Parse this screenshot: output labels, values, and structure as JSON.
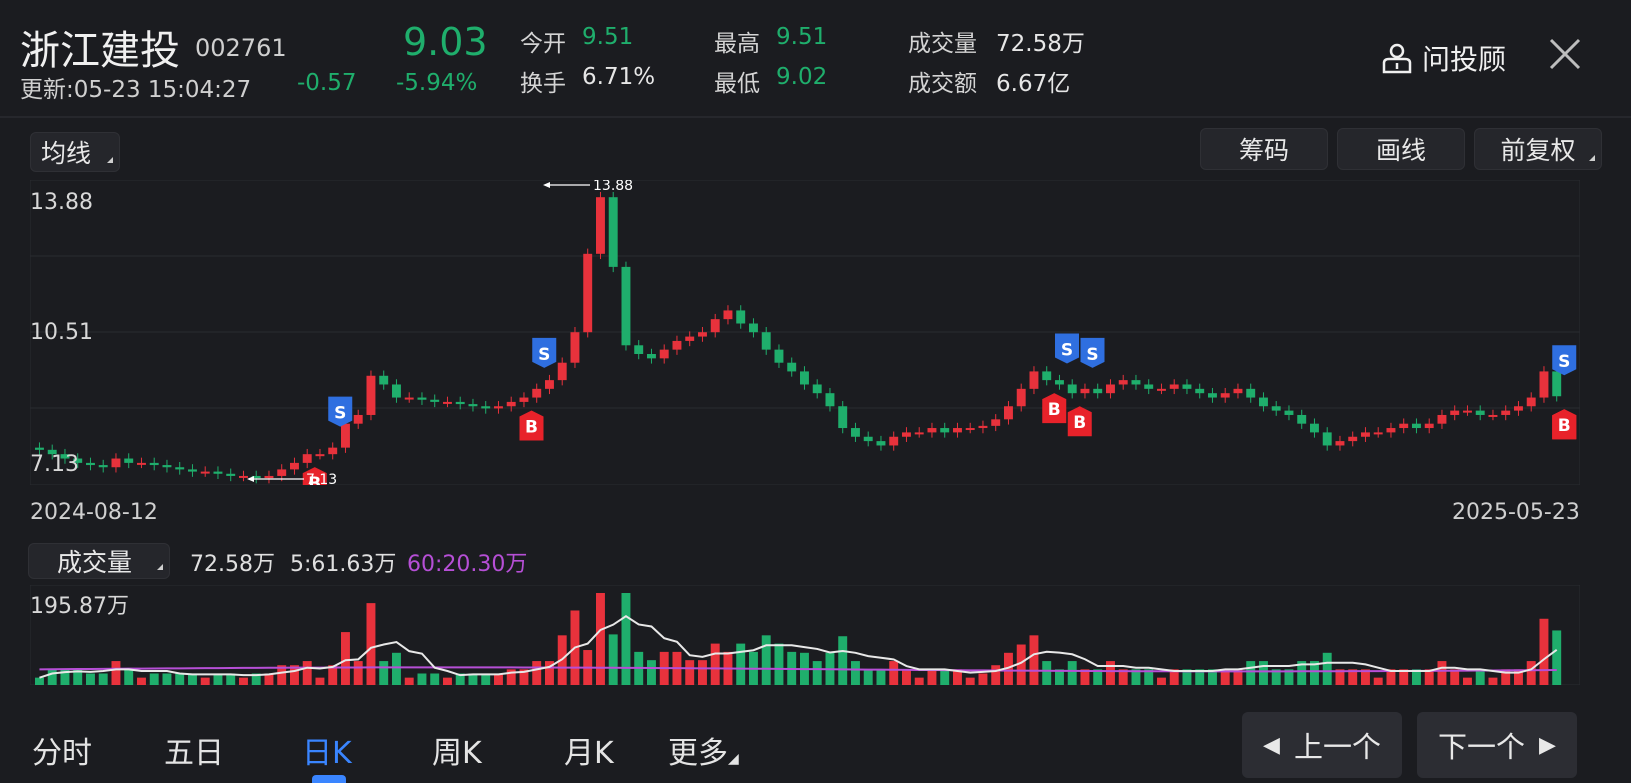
{
  "header": {
    "title": "浙江建投",
    "code": "002761",
    "update_time": "更新:05-23 15:04:27",
    "price": "9.03",
    "change": "-0.57",
    "change_pct": "-5.94%",
    "stats": [
      {
        "label": "今开",
        "value": "9.51",
        "color": "#1fae6c"
      },
      {
        "label": "换手",
        "value": "6.71%",
        "color": "#e6e6e6"
      },
      {
        "label": "最高",
        "value": "9.51",
        "color": "#1fae6c"
      },
      {
        "label": "最低",
        "value": "9.02",
        "color": "#1fae6c"
      },
      {
        "label": "成交量",
        "value": "72.58万",
        "color": "#e6e6e6"
      },
      {
        "label": "成交额",
        "value": "6.67亿",
        "color": "#e6e6e6"
      }
    ],
    "advisor_label": "问投顾"
  },
  "toolbar": {
    "ma_label": "均线",
    "chips_label": "筹码",
    "draw_label": "画线",
    "adjust_label": "前复权"
  },
  "price_chart": {
    "y_high_label": "13.88",
    "y_mid_label": "10.51",
    "y_low_label": "7.13",
    "max_marker": "13.88",
    "min_marker": "7.13",
    "start_date": "2024-08-12",
    "end_date": "2025-05-23"
  },
  "volume_chart": {
    "indicator_label": "成交量",
    "current": "72.58万",
    "ma5": "5:61.63万",
    "ma60": "60:20.30万",
    "ma60_color": "#b64fd6",
    "y_max_label": "195.87万"
  },
  "chart_data": {
    "type": "candlestick",
    "x_range": [
      "2024-08-12",
      "2025-05-23"
    ],
    "ylim": [
      7.13,
      13.88
    ],
    "max_point": 13.88,
    "min_point": 7.13,
    "close_series": [
      7.8,
      7.7,
      7.6,
      7.5,
      7.45,
      7.4,
      7.6,
      7.5,
      7.5,
      7.45,
      7.4,
      7.35,
      7.3,
      7.3,
      7.25,
      7.2,
      7.2,
      7.15,
      7.2,
      7.35,
      7.5,
      7.7,
      7.7,
      7.85,
      8.4,
      8.6,
      9.5,
      9.3,
      9.0,
      9.0,
      8.95,
      8.9,
      8.9,
      8.85,
      8.8,
      8.75,
      8.8,
      8.9,
      9.0,
      9.2,
      9.4,
      9.8,
      10.5,
      12.3,
      13.6,
      12.0,
      10.2,
      10.0,
      9.9,
      10.1,
      10.3,
      10.4,
      10.5,
      10.8,
      11.0,
      10.7,
      10.5,
      10.1,
      9.8,
      9.6,
      9.3,
      9.1,
      8.8,
      8.3,
      8.1,
      8.0,
      7.9,
      8.1,
      8.2,
      8.2,
      8.3,
      8.2,
      8.3,
      8.3,
      8.35,
      8.5,
      8.8,
      9.2,
      9.6,
      9.4,
      9.3,
      9.1,
      9.2,
      9.1,
      9.3,
      9.4,
      9.3,
      9.2,
      9.2,
      9.3,
      9.2,
      9.1,
      9.0,
      9.1,
      9.2,
      9.0,
      8.8,
      8.7,
      8.6,
      8.4,
      8.2,
      7.9,
      8.0,
      8.1,
      8.2,
      8.2,
      8.3,
      8.4,
      8.3,
      8.4,
      8.6,
      8.7,
      8.7,
      8.6,
      8.6,
      8.7,
      8.8,
      9.0,
      9.6,
      9.03
    ],
    "bs_markers": [
      {
        "type": "B",
        "label": "B"
      },
      {
        "type": "S",
        "label": "S"
      }
    ]
  }
}
